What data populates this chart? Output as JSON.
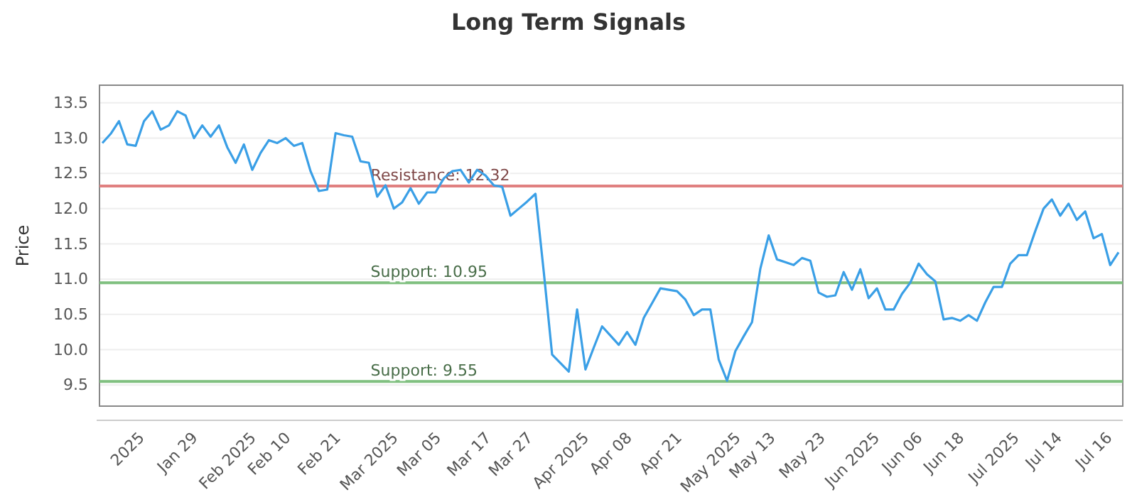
{
  "chart_data": {
    "type": "line",
    "title": "Long Term Signals",
    "ylabel": "Price",
    "categories": [
      null,
      null,
      null,
      "2025",
      null,
      null,
      null,
      null,
      null,
      "Jan 29",
      null,
      null,
      null,
      null,
      null,
      "Feb 2025",
      null,
      null,
      null,
      null,
      "Feb 10",
      null,
      null,
      null,
      null,
      null,
      "Feb 21",
      null,
      null,
      null,
      null,
      null,
      "Mar 2025",
      null,
      null,
      null,
      null,
      null,
      "Mar 05",
      null,
      null,
      null,
      null,
      null,
      "Mar 17",
      null,
      null,
      null,
      null,
      "Mar 27",
      null,
      null,
      null,
      null,
      null,
      "Apr 2025",
      null,
      null,
      null,
      null,
      null,
      "Apr 08",
      null,
      null,
      null,
      null,
      null,
      "Apr 21",
      null,
      null,
      null,
      null,
      null,
      "May 2025",
      null,
      null,
      null,
      null,
      "May 13",
      null,
      null,
      null,
      null,
      null,
      "May 23",
      null,
      null,
      null,
      null,
      null,
      "Jun 2025",
      null,
      null,
      null,
      null,
      null,
      "Jun 06",
      null,
      null,
      null,
      null,
      "Jun 18",
      null,
      null,
      null,
      null,
      null,
      "Jul 2025",
      null,
      null,
      null,
      null,
      null,
      "Jul 14",
      null,
      null,
      null,
      null,
      null,
      "Jul 16",
      null,
      null,
      null
    ],
    "series": [
      {
        "color": "#3a9fe6",
        "values": [
          12.93,
          13.06,
          13.24,
          12.91,
          12.89,
          13.24,
          13.38,
          13.12,
          13.18,
          13.38,
          13.32,
          13.0,
          13.18,
          13.02,
          13.18,
          12.87,
          12.65,
          12.91,
          12.55,
          12.79,
          12.97,
          12.93,
          13.0,
          12.89,
          12.93,
          12.53,
          12.25,
          12.27,
          13.07,
          13.04,
          13.02,
          12.67,
          12.65,
          12.17,
          12.33,
          12.0,
          12.09,
          12.29,
          12.07,
          12.23,
          12.23,
          12.43,
          12.53,
          12.55,
          12.37,
          12.55,
          12.47,
          12.33,
          12.31,
          11.9,
          12.0,
          12.1,
          12.21,
          11.1,
          9.93,
          9.81,
          9.69,
          10.57,
          9.72,
          10.03,
          10.33,
          10.2,
          10.07,
          10.25,
          10.07,
          10.45,
          10.66,
          10.87,
          10.85,
          10.83,
          10.71,
          10.49,
          10.57,
          10.57,
          9.86,
          9.56,
          9.98,
          10.19,
          10.39,
          11.15,
          11.62,
          11.28,
          11.24,
          11.2,
          11.3,
          11.26,
          10.81,
          10.75,
          10.77,
          11.1,
          10.85,
          11.14,
          10.73,
          10.87,
          10.57,
          10.57,
          10.79,
          10.95,
          11.22,
          11.07,
          10.97,
          10.43,
          10.45,
          10.41,
          10.49,
          10.41,
          10.67,
          10.89,
          10.89,
          11.22,
          11.34,
          11.34,
          11.68,
          12.0,
          12.13,
          11.9,
          12.07,
          11.84,
          11.96,
          11.58,
          11.64,
          11.2,
          11.38
        ]
      }
    ],
    "ylim": [
      9.2,
      13.75
    ],
    "yticks": [
      9.5,
      {
        "value": 10,
        "label": "10.0"
      },
      10.5,
      {
        "value": 11,
        "label": "11.0"
      },
      11.5,
      {
        "value": 12,
        "label": "12.0"
      },
      12.5,
      {
        "value": 13,
        "label": "13.0"
      },
      13.5
    ],
    "grid": "y",
    "marker": "none",
    "line_style": "solid",
    "ref_lines": [
      {
        "axis": "y",
        "value": 12.32,
        "label": "Resistance: 12.32",
        "color": "#e08080"
      },
      {
        "axis": "y",
        "value": 10.95,
        "label": "Support: 10.95",
        "color": "#80c080"
      },
      {
        "axis": "y",
        "value": 9.55,
        "label": "Support: 9.55",
        "color": "#80c080"
      }
    ]
  }
}
